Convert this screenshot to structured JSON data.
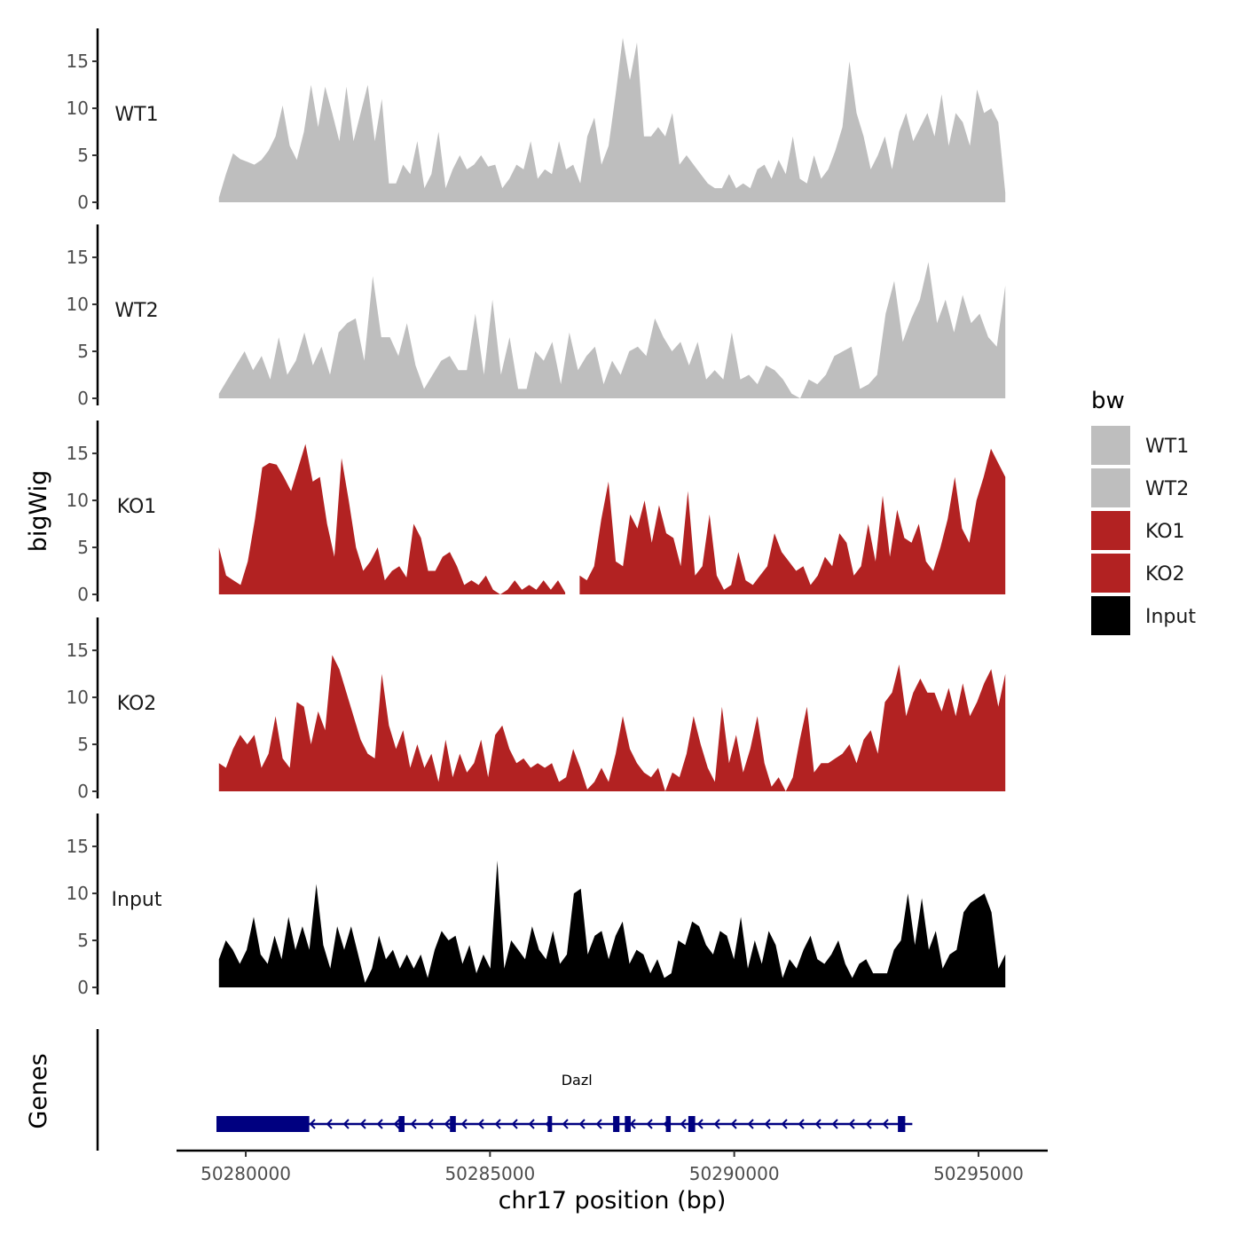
{
  "chart_data": {
    "type": "area",
    "chromosome": "chr17",
    "region": [
      50279400,
      50295600
    ],
    "xlabel": "chr17 position (bp)",
    "ylabel": "bigWig",
    "ylim": [
      0,
      18.5
    ],
    "y_ticks": [
      0,
      5,
      10,
      15
    ],
    "x_ticks": [
      50280000,
      50285000,
      50290000,
      50295000
    ],
    "x_tick_labels": [
      "50280000",
      "50285000",
      "50290000",
      "50295000"
    ],
    "legend": {
      "title": "bw",
      "entries": [
        "WT1",
        "WT2",
        "KO1",
        "KO2",
        "Input"
      ]
    },
    "series": [
      {
        "name": "WT1",
        "color": "#bebebe",
        "start": 50279450,
        "end": 50295550,
        "values": [
          0.5,
          3.0,
          5.2,
          4.6,
          4.3,
          4.0,
          4.5,
          5.5,
          7.0,
          10.3,
          6.0,
          4.5,
          7.5,
          12.5,
          8.0,
          12.3,
          9.5,
          6.5,
          12.3,
          6.5,
          9.5,
          12.5,
          6.5,
          11.0,
          2.0,
          2.0,
          4.0,
          3.0,
          6.5,
          1.5,
          3.0,
          7.5,
          1.5,
          3.5,
          5.0,
          3.5,
          4.0,
          5.0,
          3.8,
          4.0,
          1.5,
          2.5,
          4.0,
          3.5,
          6.5,
          2.5,
          3.5,
          3.0,
          6.5,
          3.5,
          4.0,
          2.0,
          7.0,
          9.0,
          4.0,
          6.0,
          11.5,
          17.5,
          13.0,
          17.0,
          7.0,
          7.0,
          8.0,
          7.0,
          9.5,
          4.0,
          5.0,
          4.0,
          3.0,
          2.0,
          1.5,
          1.5,
          3.0,
          1.5,
          2.0,
          1.5,
          3.5,
          4.0,
          2.5,
          4.5,
          3.0,
          7.0,
          2.5,
          2.0,
          5.0,
          2.5,
          3.5,
          5.5,
          8.0,
          15.0,
          9.5,
          7.0,
          3.5,
          5.0,
          7.0,
          3.5,
          7.5,
          9.5,
          6.5,
          8.0,
          9.5,
          7.0,
          11.5,
          6.0,
          9.5,
          8.5,
          6.0,
          12.0,
          9.5,
          10.0,
          8.5,
          1.0
        ],
        "gaps": []
      },
      {
        "name": "WT2",
        "color": "#bebebe",
        "start": 50279450,
        "end": 50295550,
        "values": [
          0.5,
          2.0,
          3.5,
          5.0,
          3.0,
          4.5,
          2.0,
          6.5,
          2.5,
          4.0,
          7.0,
          3.5,
          5.5,
          2.5,
          7.0,
          8.0,
          8.5,
          4.0,
          13.0,
          6.5,
          6.5,
          4.5,
          8.0,
          3.5,
          1.0,
          2.5,
          4.0,
          4.5,
          3.0,
          3.0,
          9.0,
          2.5,
          10.5,
          2.5,
          6.5,
          1.0,
          1.0,
          5.0,
          4.0,
          6.0,
          1.5,
          7.0,
          3.0,
          4.5,
          5.5,
          1.5,
          4.0,
          2.5,
          5.0,
          5.5,
          4.5,
          8.5,
          6.5,
          5.0,
          6.0,
          3.5,
          6.0,
          2.0,
          3.0,
          2.0,
          7.0,
          2.0,
          2.5,
          1.5,
          3.5,
          3.0,
          2.0,
          0.5,
          0.0,
          2.0,
          1.5,
          2.5,
          4.5,
          5.0,
          5.5,
          1.0,
          1.5,
          2.5,
          9.0,
          12.5,
          6.0,
          8.5,
          10.5,
          14.5,
          8.0,
          10.5,
          7.0,
          11.0,
          8.0,
          9.0,
          6.5,
          5.5,
          12.0
        ],
        "gaps": [
          [
            50291550,
            50291650
          ]
        ]
      },
      {
        "name": "KO1",
        "color": "#b22222",
        "start": 50279450,
        "end": 50295550,
        "values": [
          5.0,
          2.0,
          1.5,
          1.0,
          3.5,
          8.0,
          13.5,
          14.0,
          13.8,
          12.5,
          11.0,
          13.5,
          16.0,
          12.0,
          12.5,
          7.5,
          4.0,
          14.5,
          10.0,
          5.0,
          2.5,
          3.5,
          5.0,
          1.5,
          2.5,
          3.0,
          1.8,
          7.5,
          6.0,
          2.5,
          2.5,
          4.0,
          4.5,
          3.0,
          1.0,
          1.5,
          1.0,
          2.0,
          0.5,
          0.0,
          0.5,
          1.5,
          0.5,
          1.0,
          0.5,
          1.5,
          0.5,
          1.5,
          0.2,
          1.5,
          2.0,
          1.5,
          3.0,
          8.0,
          12.0,
          3.5,
          3.0,
          8.5,
          7.0,
          10.0,
          5.5,
          9.5,
          6.5,
          6.0,
          3.0,
          11.0,
          2.0,
          3.0,
          8.5,
          2.0,
          0.5,
          1.0,
          4.5,
          1.5,
          1.0,
          2.0,
          3.0,
          6.5,
          4.5,
          3.5,
          2.5,
          3.0,
          1.0,
          2.0,
          4.0,
          3.0,
          6.5,
          5.5,
          2.0,
          3.0,
          7.5,
          3.5,
          10.5,
          4.0,
          9.0,
          6.0,
          5.5,
          7.5,
          3.5,
          2.5,
          5.0,
          8.0,
          12.5,
          7.0,
          5.5,
          10.0,
          12.5,
          15.5,
          14.0,
          12.5
        ],
        "gaps": [
          [
            50286650,
            50286800
          ]
        ]
      },
      {
        "name": "KO2",
        "color": "#b22222",
        "start": 50279450,
        "end": 50295550,
        "values": [
          3.0,
          2.5,
          4.5,
          6.0,
          5.0,
          6.0,
          2.5,
          4.0,
          8.0,
          3.5,
          2.5,
          9.5,
          9.0,
          5.0,
          8.5,
          6.5,
          14.5,
          13.0,
          10.5,
          8.0,
          5.5,
          4.0,
          3.5,
          12.5,
          7.0,
          4.5,
          6.5,
          2.5,
          5.0,
          2.5,
          4.0,
          1.0,
          5.5,
          1.5,
          4.0,
          2.0,
          3.0,
          5.5,
          1.5,
          6.0,
          7.0,
          4.5,
          3.0,
          3.5,
          2.5,
          3.0,
          2.5,
          3.0,
          1.0,
          1.5,
          4.5,
          2.5,
          0.2,
          1.0,
          2.5,
          1.0,
          4.0,
          8.0,
          4.5,
          3.0,
          2.0,
          1.5,
          2.5,
          0.0,
          2.0,
          1.5,
          4.0,
          8.0,
          5.0,
          2.5,
          1.0,
          9.0,
          3.0,
          6.0,
          2.0,
          4.5,
          8.0,
          3.0,
          0.5,
          1.5,
          0.0,
          1.5,
          5.5,
          9.0,
          2.0,
          3.0,
          3.0,
          3.5,
          4.0,
          5.0,
          3.0,
          5.5,
          6.5,
          4.0,
          9.5,
          10.5,
          13.5,
          8.0,
          10.5,
          12.0,
          10.5,
          10.5,
          8.5,
          11.0,
          8.0,
          11.5,
          8.0,
          9.5,
          11.5,
          13.0,
          9.0,
          12.5
        ],
        "gaps": []
      },
      {
        "name": "Input",
        "color": "#000000",
        "start": 50279450,
        "end": 50295550,
        "values": [
          3.0,
          5.0,
          4.0,
          2.5,
          4.0,
          7.5,
          3.5,
          2.5,
          5.5,
          3.0,
          7.5,
          4.0,
          6.5,
          4.0,
          11.0,
          4.5,
          2.0,
          6.5,
          4.0,
          6.5,
          3.5,
          0.5,
          2.0,
          5.5,
          3.0,
          4.0,
          2.0,
          3.5,
          2.0,
          3.5,
          1.0,
          4.0,
          6.0,
          5.0,
          5.5,
          2.5,
          4.5,
          1.5,
          3.5,
          2.0,
          13.5,
          2.0,
          5.0,
          4.0,
          3.0,
          6.5,
          4.0,
          3.0,
          6.0,
          2.5,
          3.5,
          10.0,
          10.5,
          3.5,
          5.5,
          6.0,
          3.0,
          5.5,
          7.0,
          2.5,
          4.0,
          3.5,
          1.5,
          3.0,
          1.0,
          1.5,
          5.0,
          4.5,
          7.0,
          6.5,
          4.5,
          3.5,
          6.0,
          5.5,
          3.0,
          7.5,
          2.0,
          5.0,
          2.5,
          6.0,
          4.5,
          1.0,
          3.0,
          2.0,
          4.0,
          5.5,
          3.0,
          2.5,
          3.5,
          5.0,
          2.5,
          1.0,
          2.5,
          3.0,
          1.5,
          1.5,
          1.5,
          4.0,
          5.0,
          10.0,
          4.5,
          9.5,
          4.0,
          6.0,
          2.0,
          3.5,
          4.0,
          8.0,
          9.0,
          9.5,
          10.0,
          8.0,
          2.0,
          3.5
        ],
        "gaps": []
      }
    ],
    "genes": [
      {
        "name": "Dazl",
        "strand": "-",
        "start": 50279400,
        "end": 50293500,
        "exons": [
          [
            50279400,
            50281300
          ],
          [
            50283130,
            50283250
          ],
          [
            50284180,
            50284300
          ],
          [
            50286180,
            50286260
          ],
          [
            50287520,
            50287650
          ],
          [
            50287760,
            50287880
          ],
          [
            50288600,
            50288700
          ],
          [
            50289060,
            50289200
          ],
          [
            50293350,
            50293500
          ]
        ]
      }
    ],
    "genes_track_label": "Genes"
  }
}
